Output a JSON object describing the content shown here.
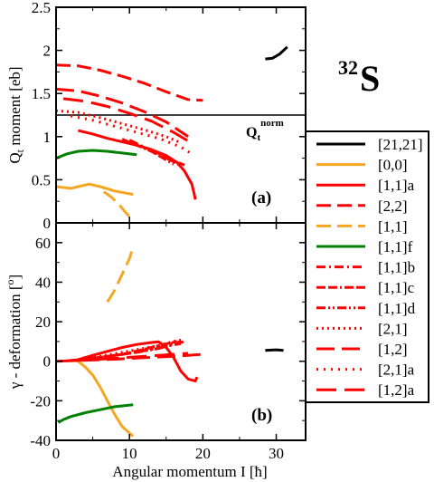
{
  "nucleus_label": {
    "mass": "32",
    "symbol": "S"
  },
  "chart_data": [
    {
      "type": "line",
      "panel_label": "(a)",
      "ylabel_main": "Q",
      "ylabel_sub": "t",
      "ylabel_rest": " moment [eb]",
      "xlim": [
        0,
        34
      ],
      "ylim": [
        0,
        2.5
      ],
      "yticks": [
        0,
        0.5,
        1,
        1.5,
        2,
        2.5
      ],
      "yticklabels": [
        "0",
        "0.5",
        "1",
        "1.5",
        "2",
        "2.5"
      ],
      "xticks": [
        0,
        10,
        20,
        30
      ],
      "reference_line": {
        "y": 1.25,
        "label_main": "Q",
        "label_sub": "t",
        "label_sup": "norm"
      },
      "series": [
        {
          "name": "[21,21]",
          "color": "#000000",
          "dash": "solid",
          "points": [
            [
              28.5,
              1.9
            ],
            [
              29.5,
              1.91
            ],
            [
              30.5,
              1.96
            ],
            [
              31.5,
              2.04
            ]
          ]
        },
        {
          "name": "[0,0]",
          "color": "#f5a623",
          "dash": "solid",
          "points": [
            [
              0,
              0.42
            ],
            [
              2,
              0.4
            ],
            [
              3,
              0.42
            ],
            [
              4.5,
              0.45
            ],
            [
              6,
              0.42
            ],
            [
              8,
              0.37
            ],
            [
              10.5,
              0.33
            ]
          ]
        },
        {
          "name": "[1,1]a",
          "color": "#ff0000",
          "dash": "solid",
          "points": [
            [
              3,
              1.07
            ],
            [
              5,
              1.03
            ],
            [
              7,
              0.98
            ],
            [
              9,
              0.94
            ],
            [
              11,
              0.9
            ],
            [
              13,
              0.85
            ],
            [
              15,
              0.78
            ],
            [
              16.5,
              0.7
            ],
            [
              17.5,
              0.6
            ],
            [
              18.5,
              0.45
            ],
            [
              19,
              0.27
            ]
          ]
        },
        {
          "name": "[2,2]",
          "color": "#ff0000",
          "dash": "longdash",
          "points": [
            [
              0,
              1.83
            ],
            [
              3,
              1.82
            ],
            [
              6,
              1.77
            ],
            [
              9,
              1.7
            ],
            [
              12,
              1.62
            ],
            [
              15,
              1.52
            ],
            [
              18,
              1.43
            ],
            [
              20,
              1.42
            ]
          ]
        },
        {
          "name": "[1,1]",
          "color": "#f5a623",
          "dash": "longdash",
          "points": [
            [
              6.5,
              0.36
            ],
            [
              7.5,
              0.3
            ],
            [
              8.5,
              0.22
            ],
            [
              9.5,
              0.12
            ],
            [
              10.2,
              0.05
            ]
          ]
        },
        {
          "name": "[1,1]f",
          "color": "#008000",
          "dash": "solid",
          "points": [
            [
              0,
              0.75
            ],
            [
              1.5,
              0.8
            ],
            [
              3,
              0.83
            ],
            [
              5,
              0.84
            ],
            [
              7,
              0.83
            ],
            [
              9,
              0.81
            ],
            [
              11,
              0.79
            ]
          ]
        },
        {
          "name": "[1,1]b",
          "color": "#ff0000",
          "dash": "dashdot",
          "points": [
            [
              10,
              0.96
            ],
            [
              12,
              0.88
            ],
            [
              14,
              0.8
            ],
            [
              16,
              0.72
            ],
            [
              17.5,
              0.67
            ]
          ]
        },
        {
          "name": "[1,1]c",
          "color": "#ff0000",
          "dash": "dashdashdot",
          "points": [
            [
              9,
              0.97
            ],
            [
              11,
              0.9
            ],
            [
              13,
              0.83
            ],
            [
              15,
              0.73
            ],
            [
              16,
              0.68
            ]
          ]
        },
        {
          "name": "[1,1]d",
          "color": "#ff0000",
          "dash": "dashdotdot",
          "points": [
            [
              10,
              0.94
            ],
            [
              12,
              0.87
            ],
            [
              14,
              0.79
            ],
            [
              16,
              0.71
            ],
            [
              17,
              0.66
            ]
          ]
        },
        {
          "name": "[2,1]",
          "color": "#ff0000",
          "dash": "dotted",
          "points": [
            [
              0,
              1.3
            ],
            [
              3,
              1.28
            ],
            [
              6,
              1.22
            ],
            [
              9,
              1.15
            ],
            [
              12,
              1.08
            ],
            [
              15,
              1.0
            ],
            [
              17,
              0.93
            ]
          ]
        },
        {
          "name": "[1,2]",
          "color": "#ff0000",
          "dash": "longdash2",
          "points": [
            [
              0,
              1.55
            ],
            [
              3,
              1.53
            ],
            [
              6,
              1.47
            ],
            [
              9,
              1.39
            ],
            [
              12,
              1.29
            ],
            [
              15,
              1.17
            ],
            [
              18,
              1.0
            ]
          ]
        },
        {
          "name": "[2,1]a",
          "color": "#ff0000",
          "dash": "dotted2",
          "points": [
            [
              2,
              1.24
            ],
            [
              5,
              1.19
            ],
            [
              8,
              1.12
            ],
            [
              11,
              1.05
            ],
            [
              14,
              0.98
            ],
            [
              17,
              0.88
            ],
            [
              18.5,
              0.8
            ]
          ]
        },
        {
          "name": "[1,2]a",
          "color": "#ff0000",
          "dash": "longdash3",
          "points": [
            [
              1,
              1.44
            ],
            [
              4,
              1.41
            ],
            [
              7,
              1.35
            ],
            [
              10,
              1.27
            ],
            [
              13,
              1.18
            ],
            [
              16,
              1.05
            ],
            [
              18,
              0.95
            ]
          ]
        }
      ]
    },
    {
      "type": "line",
      "panel_label": "(b)",
      "ylabel_main": "γ - deformation [",
      "ylabel_sup": "o",
      "ylabel_rest": "]",
      "xlabel": "Angular momentum I [ħ]",
      "xlim": [
        0,
        34
      ],
      "ylim": [
        -40,
        70
      ],
      "yticks": [
        -40,
        -20,
        0,
        20,
        40,
        60
      ],
      "yticklabels": [
        "-40",
        "-20",
        "0",
        "20",
        "40",
        "60"
      ],
      "xticks": [
        0,
        10,
        20,
        30
      ],
      "xticklabels": [
        "0",
        "10",
        "20",
        "30"
      ],
      "series": [
        {
          "name": "[21,21]",
          "color": "#000000",
          "dash": "solid",
          "points": [
            [
              28.5,
              5.5
            ],
            [
              30,
              5.8
            ],
            [
              31,
              5.5
            ]
          ]
        },
        {
          "name": "[0,0]",
          "color": "#f5a623",
          "dash": "solid",
          "points": [
            [
              2,
              0.5
            ],
            [
              3,
              0
            ],
            [
              4,
              -3
            ],
            [
              5,
              -7
            ],
            [
              6,
              -13
            ],
            [
              7,
              -20
            ],
            [
              8,
              -27
            ],
            [
              9,
              -33
            ],
            [
              10.5,
              -38
            ]
          ]
        },
        {
          "name": "[1,1]a",
          "color": "#ff0000",
          "dash": "solid",
          "points": [
            [
              1.5,
              0.2
            ],
            [
              3,
              0.8
            ],
            [
              5,
              3
            ],
            [
              7,
              5
            ],
            [
              9,
              7
            ],
            [
              11,
              8.5
            ],
            [
              13,
              9.5
            ],
            [
              14,
              9.8
            ],
            [
              15,
              7
            ],
            [
              16,
              2
            ],
            [
              17,
              -5
            ],
            [
              18,
              -9
            ],
            [
              19,
              -10
            ],
            [
              19.2,
              -8
            ]
          ]
        },
        {
          "name": "[1,1]",
          "color": "#f5a623",
          "dash": "longdash",
          "points": [
            [
              7,
              30
            ],
            [
              8,
              36
            ],
            [
              9,
              44
            ],
            [
              10,
              52
            ],
            [
              10.5,
              58
            ]
          ]
        },
        {
          "name": "[1,1]f",
          "color": "#008000",
          "dash": "solid",
          "points": [
            [
              0.3,
              -31
            ],
            [
              1,
              -29.5
            ],
            [
              2,
              -28
            ],
            [
              4,
              -26
            ],
            [
              6,
              -24.5
            ],
            [
              8,
              -23
            ],
            [
              10.5,
              -22
            ]
          ]
        },
        {
          "name": "[1,1]b",
          "color": "#ff0000",
          "dash": "dashdot",
          "points": [
            [
              4,
              1
            ],
            [
              7,
              2.5
            ],
            [
              10,
              4
            ],
            [
              13,
              6
            ],
            [
              15,
              7.5
            ],
            [
              17,
              9
            ]
          ]
        },
        {
          "name": "[1,1]c",
          "color": "#ff0000",
          "dash": "dashdashdot",
          "points": [
            [
              3,
              0.5
            ],
            [
              6,
              2
            ],
            [
              9,
              3.5
            ],
            [
              12,
              6
            ],
            [
              14,
              8
            ],
            [
              16.5,
              10
            ]
          ]
        },
        {
          "name": "[1,1]d",
          "color": "#ff0000",
          "dash": "dashdotdot",
          "points": [
            [
              5,
              1.5
            ],
            [
              8,
              3
            ],
            [
              11,
              4.5
            ],
            [
              14,
              6.5
            ],
            [
              17.5,
              10
            ]
          ]
        },
        {
          "name": "[2,1]",
          "color": "#ff0000",
          "dash": "dotted",
          "points": [
            [
              3,
              0.5
            ],
            [
              6,
              2.5
            ],
            [
              9,
              4.5
            ],
            [
              12,
              6.5
            ],
            [
              14,
              8
            ],
            [
              16,
              10
            ],
            [
              17.5,
              11
            ]
          ]
        },
        {
          "name": "[1,2]",
          "color": "#ff0000",
          "dash": "longdash2",
          "points": [
            [
              0,
              0
            ],
            [
              4,
              0.5
            ],
            [
              8,
              1
            ],
            [
              12,
              1.8
            ],
            [
              16,
              2.5
            ],
            [
              20,
              3.5
            ]
          ]
        },
        {
          "name": "[2,1]a",
          "color": "#ff0000",
          "dash": "dotted2",
          "points": [
            [
              4,
              1
            ],
            [
              8,
              3
            ],
            [
              12,
              5.5
            ],
            [
              15,
              8.5
            ],
            [
              17,
              10
            ]
          ]
        },
        {
          "name": "[1,2]a",
          "color": "#ff0000",
          "dash": "longdash3",
          "points": [
            [
              2,
              0.3
            ],
            [
              6,
              1
            ],
            [
              10,
              2
            ],
            [
              14,
              3
            ],
            [
              18,
              4
            ]
          ]
        }
      ]
    }
  ],
  "legend": {
    "entries": [
      {
        "label": "[21,21]",
        "color": "#000000",
        "dash": "solid"
      },
      {
        "label": "[0,0]",
        "color": "#f5a623",
        "dash": "solid"
      },
      {
        "label": "[1,1]a",
        "color": "#ff0000",
        "dash": "solid"
      },
      {
        "label": "[2,2]",
        "color": "#ff0000",
        "dash": "longdash"
      },
      {
        "label": "[1,1]",
        "color": "#f5a623",
        "dash": "longdash"
      },
      {
        "label": "[1,1]f",
        "color": "#008000",
        "dash": "solid"
      },
      {
        "label": "[1,1]b",
        "color": "#ff0000",
        "dash": "dashdot"
      },
      {
        "label": "[1,1]c",
        "color": "#ff0000",
        "dash": "dashdashdot"
      },
      {
        "label": "[1,1]d",
        "color": "#ff0000",
        "dash": "dashdotdot"
      },
      {
        "label": "[2,1]",
        "color": "#ff0000",
        "dash": "dotted"
      },
      {
        "label": "[1,2]",
        "color": "#ff0000",
        "dash": "longdash2"
      },
      {
        "label": "[2,1]a",
        "color": "#ff0000",
        "dash": "dotted2"
      },
      {
        "label": "[1,2]a",
        "color": "#ff0000",
        "dash": "longdash3"
      }
    ]
  }
}
